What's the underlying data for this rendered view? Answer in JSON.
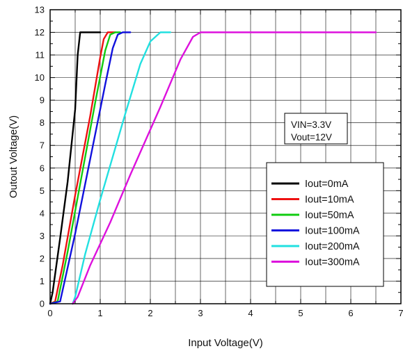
{
  "chart_data": {
    "type": "line",
    "title": "",
    "xlabel": "Input Voltage(V)",
    "ylabel": "Outout Voltage(V)",
    "xlim": [
      0,
      7
    ],
    "ylim": [
      0,
      13
    ],
    "x_ticks": [
      "0",
      "1",
      "2",
      "3",
      "4",
      "5",
      "6",
      "7"
    ],
    "y_ticks": [
      "0",
      "1",
      "2",
      "3",
      "4",
      "5",
      "6",
      "7",
      "8",
      "9",
      "10",
      "11",
      "12",
      "13"
    ],
    "grid": true,
    "legend_position": "bottom-right",
    "annotation": [
      "VIN=3.3V",
      "Vout=12V"
    ],
    "series": [
      {
        "name": "Iout=0mA",
        "color": "#000000",
        "points": [
          [
            0,
            0
          ],
          [
            0.05,
            0.5
          ],
          [
            0.2,
            2.9
          ],
          [
            0.35,
            5.4
          ],
          [
            0.5,
            8.6
          ],
          [
            0.55,
            11
          ],
          [
            0.6,
            12
          ],
          [
            1.0,
            12
          ]
        ]
      },
      {
        "name": "Iout=10mA",
        "color": "#ee1111",
        "points": [
          [
            0,
            0
          ],
          [
            0.1,
            0.1
          ],
          [
            0.25,
            1.7
          ],
          [
            0.5,
            4.8
          ],
          [
            0.8,
            8.3
          ],
          [
            1.0,
            10.9
          ],
          [
            1.07,
            11.7
          ],
          [
            1.15,
            12
          ],
          [
            1.3,
            12
          ]
        ]
      },
      {
        "name": "Iout=50mA",
        "color": "#11cc11",
        "points": [
          [
            0,
            0
          ],
          [
            0.15,
            0.1
          ],
          [
            0.35,
            2.3
          ],
          [
            0.6,
            5.3
          ],
          [
            0.9,
            8.9
          ],
          [
            1.1,
            11.2
          ],
          [
            1.2,
            11.9
          ],
          [
            1.3,
            12
          ],
          [
            1.4,
            12
          ]
        ]
      },
      {
        "name": "Iout=100mA",
        "color": "#1111dd",
        "points": [
          [
            0,
            0
          ],
          [
            0.2,
            0.1
          ],
          [
            0.5,
            3.1
          ],
          [
            0.8,
            6.4
          ],
          [
            1.1,
            9.7
          ],
          [
            1.25,
            11.3
          ],
          [
            1.35,
            11.9
          ],
          [
            1.45,
            12
          ],
          [
            1.6,
            12
          ]
        ]
      },
      {
        "name": "Iout=200mA",
        "color": "#22e0e0",
        "points": [
          [
            0.45,
            0
          ],
          [
            0.5,
            0.3
          ],
          [
            0.7,
            2.2
          ],
          [
            1.0,
            4.6
          ],
          [
            1.5,
            8.4
          ],
          [
            1.8,
            10.6
          ],
          [
            2.0,
            11.6
          ],
          [
            2.2,
            12
          ],
          [
            2.4,
            12
          ]
        ]
      },
      {
        "name": "Iout=300mA",
        "color": "#dd11dd",
        "points": [
          [
            0.45,
            0
          ],
          [
            0.55,
            0.3
          ],
          [
            0.8,
            1.7
          ],
          [
            1.2,
            3.6
          ],
          [
            1.6,
            5.7
          ],
          [
            2.2,
            8.7
          ],
          [
            2.6,
            10.8
          ],
          [
            2.85,
            11.8
          ],
          [
            3.0,
            12
          ],
          [
            6.5,
            12
          ]
        ]
      }
    ]
  }
}
